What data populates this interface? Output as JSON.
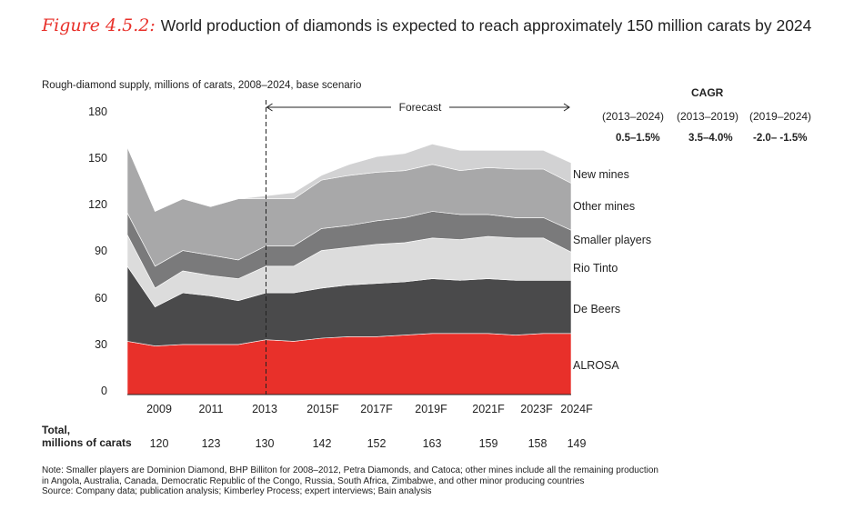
{
  "title": {
    "label": "Figure 4.5.2:",
    "text": "World production of diamonds is expected to reach approximately 150 million carats by 2024"
  },
  "subtitle": "Rough-diamond supply, millions of carats, 2008–2024, base scenario",
  "forecast_label": "Forecast",
  "cagr": {
    "header": "CAGR",
    "periods": [
      "(2013–2024)",
      "(2013–2019)",
      "(2019–2024)"
    ],
    "values": [
      "0.5–1.5%",
      "3.5–4.0%",
      "-2.0– -1.5%"
    ]
  },
  "totals": {
    "label_line1": "Total,",
    "label_line2": "millions of carats",
    "values": [
      "120",
      "123",
      "130",
      "142",
      "152",
      "163",
      "159",
      "158",
      "149"
    ]
  },
  "notes": {
    "line1": "Note:  Smaller players are Dominion Diamond, BHP Billiton for 2008–2012, Petra Diamonds, and Catoca; other mines include all the remaining production",
    "line2": "in Angola, Australia, Canada, Democratic Republic of the Congo, Russia, South Africa, Zimbabwe, and other minor producing countries",
    "line3": "Source:  Company data; publication analysis; Kimberley Process; expert interviews; Bain analysis"
  },
  "chart_data": {
    "type": "area",
    "stacked": true,
    "x": [
      2008,
      2009,
      2010,
      2011,
      2012,
      2013,
      2014,
      2015,
      2016,
      2017,
      2018,
      2019,
      2020,
      2021,
      2022,
      2023,
      2024
    ],
    "x_tick_labels": [
      "2009",
      "2011",
      "2013",
      "2015F",
      "2017F",
      "2019F",
      "2021F",
      "2023F",
      "2024F"
    ],
    "x_tick_values": [
      2009,
      2011,
      2013,
      2015,
      2017,
      2019,
      2021,
      2023,
      2024
    ],
    "ylim": [
      0,
      180
    ],
    "y_ticks": [
      0,
      30,
      60,
      90,
      120,
      150,
      180
    ],
    "forecast_start": 2013,
    "series": [
      {
        "name": "ALROSA",
        "color": "#e8302a",
        "values": [
          34,
          31,
          32,
          32,
          32,
          35,
          34,
          36,
          37,
          37,
          38,
          39,
          39,
          39,
          38,
          39,
          39
        ]
      },
      {
        "name": "De Beers",
        "color": "#4a4a4b",
        "values": [
          48,
          25,
          33,
          31,
          28,
          30,
          31,
          32,
          33,
          34,
          34,
          35,
          34,
          35,
          35,
          34,
          34
        ]
      },
      {
        "name": "Rio Tinto",
        "color": "#dcdcdc",
        "values": [
          20,
          12,
          14,
          13,
          14,
          17,
          17,
          24,
          24,
          25,
          25,
          26,
          26,
          27,
          27,
          27,
          18
        ]
      },
      {
        "name": "Smaller players",
        "color": "#7a7a7b",
        "values": [
          14,
          14,
          13,
          13,
          12,
          13,
          13,
          14,
          14,
          15,
          16,
          17,
          16,
          14,
          13,
          13,
          14
        ]
      },
      {
        "name": "Other mines",
        "color": "#a8a8a9",
        "values": [
          42,
          35,
          33,
          31,
          39,
          30,
          30,
          31,
          32,
          31,
          30,
          30,
          28,
          30,
          31,
          31,
          30
        ]
      },
      {
        "name": "New mines",
        "color": "#d2d2d3",
        "values": [
          0,
          0,
          0,
          0,
          0,
          2,
          4,
          3,
          7,
          10,
          11,
          13,
          13,
          11,
          12,
          12,
          13
        ]
      }
    ]
  }
}
